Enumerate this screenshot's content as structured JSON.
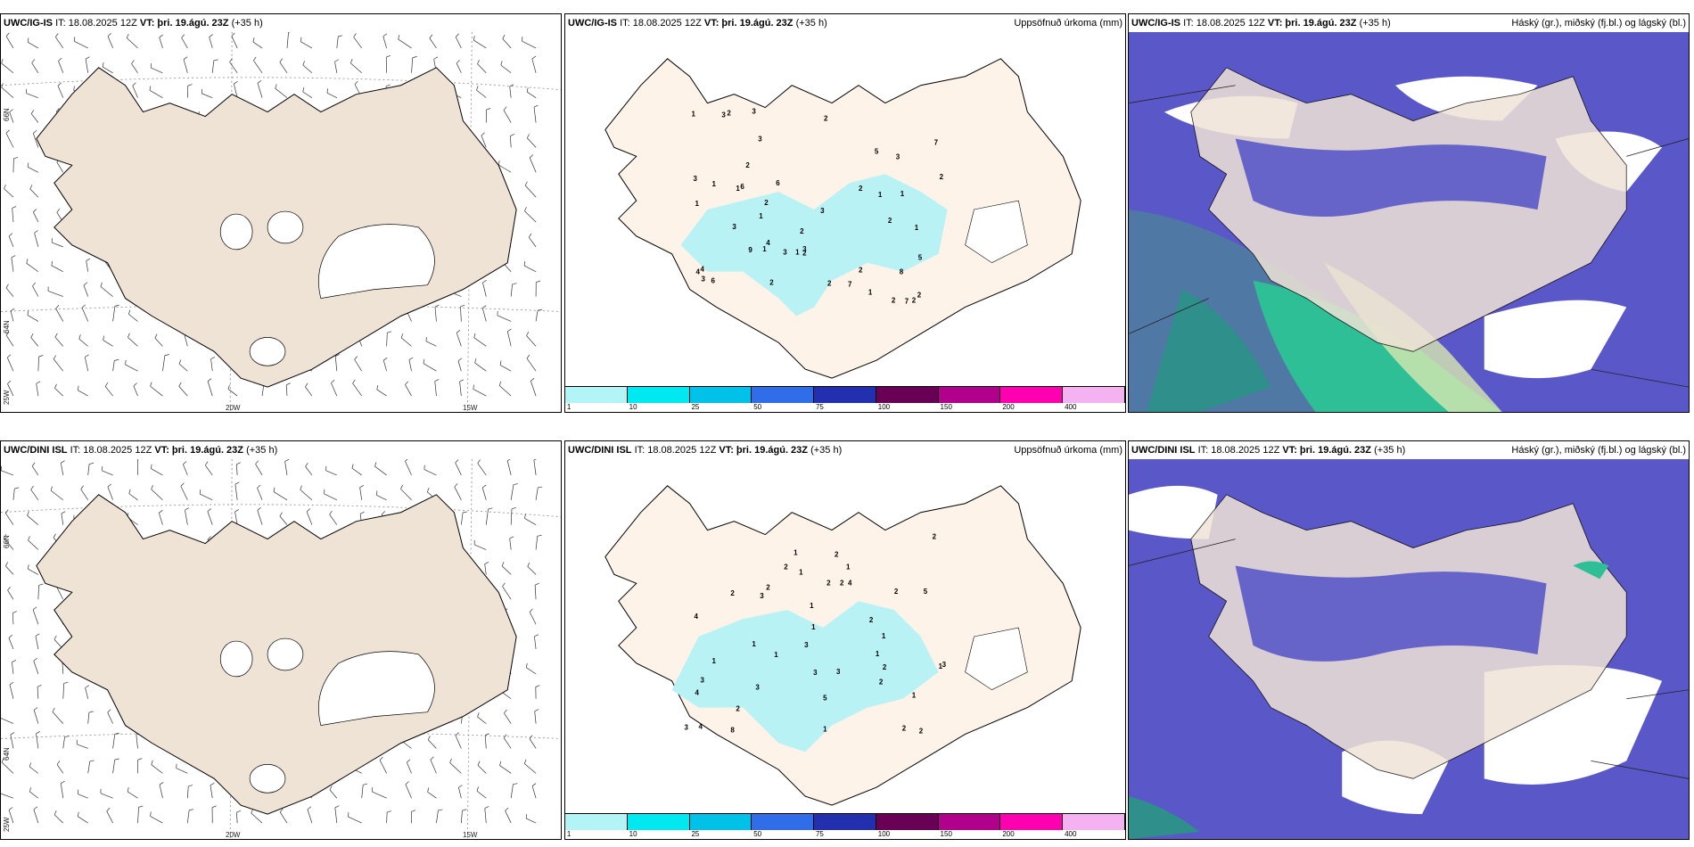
{
  "rows": [
    {
      "model": "UWC/IG-IS",
      "it_label": "IT: 18.08.2025 12Z",
      "vt_prefix": "VT:",
      "vt_value": "þri. 19.ágú. 23Z",
      "lead": "(+35 h)"
    },
    {
      "model": "UWC/DINI ISL",
      "it_label": "IT: 18.08.2025 12Z",
      "vt_prefix": "VT:",
      "vt_value": "þri. 19.ágú. 23Z",
      "lead": "(+35 h)"
    }
  ],
  "precip_title": "Uppsöfnuð úrkoma (mm)",
  "cloud_title": "Háský (gr.), miðský (fj.bl.) og lágský (bl.)",
  "axis": {
    "lon_20w": "20W",
    "lon_15w": "15W",
    "lat_66n": "66N",
    "lat_64n": "64N",
    "lat_25w": "25W"
  },
  "colorbar": {
    "colors": [
      "#b3f5f7",
      "#00e8f0",
      "#00c2e8",
      "#2f6ee8",
      "#2230b0",
      "#6a0055",
      "#b0008c",
      "#ff00b0",
      "#f5b2f0"
    ],
    "ticks": [
      "1",
      "10",
      "25",
      "50",
      "75",
      "100",
      "150",
      "200",
      "400"
    ]
  },
  "precip_labels_top": [
    "2",
    "1",
    "3",
    "2",
    "2",
    "3",
    "1",
    "1",
    "1",
    "1",
    "1",
    "2",
    "1",
    "2",
    "2",
    "2",
    "3",
    "2",
    "7",
    "6",
    "7",
    "6",
    "7",
    "9",
    "8",
    "2",
    "2",
    "4",
    "3",
    "4",
    "4",
    "3",
    "6",
    "5",
    "5",
    "3",
    "1",
    "2",
    "3",
    "2",
    "1",
    "2",
    "1",
    "1",
    "2",
    "3",
    "3",
    "2",
    "3"
  ],
  "precip_labels_bottom": [
    "1",
    "2",
    "2",
    "1",
    "1",
    "3",
    "1",
    "1",
    "2",
    "1",
    "1",
    "2",
    "1",
    "2",
    "1",
    "2",
    "2",
    "2",
    "1",
    "5",
    "5",
    "4",
    "4",
    "8",
    "4",
    "4",
    "3",
    "3",
    "3",
    "2",
    "2",
    "3",
    "1",
    "3",
    "1",
    "2",
    "1",
    "2",
    "3",
    "2",
    "3",
    "2"
  ],
  "colors": {
    "land": "#efe3d6",
    "land_precip": "#fdf3e8",
    "precip_fill": "#b8f2f5",
    "cloud_high": "#5a58c8",
    "cloud_mid": "#2f8f8a",
    "cloud_low": "#3fd4a0"
  }
}
